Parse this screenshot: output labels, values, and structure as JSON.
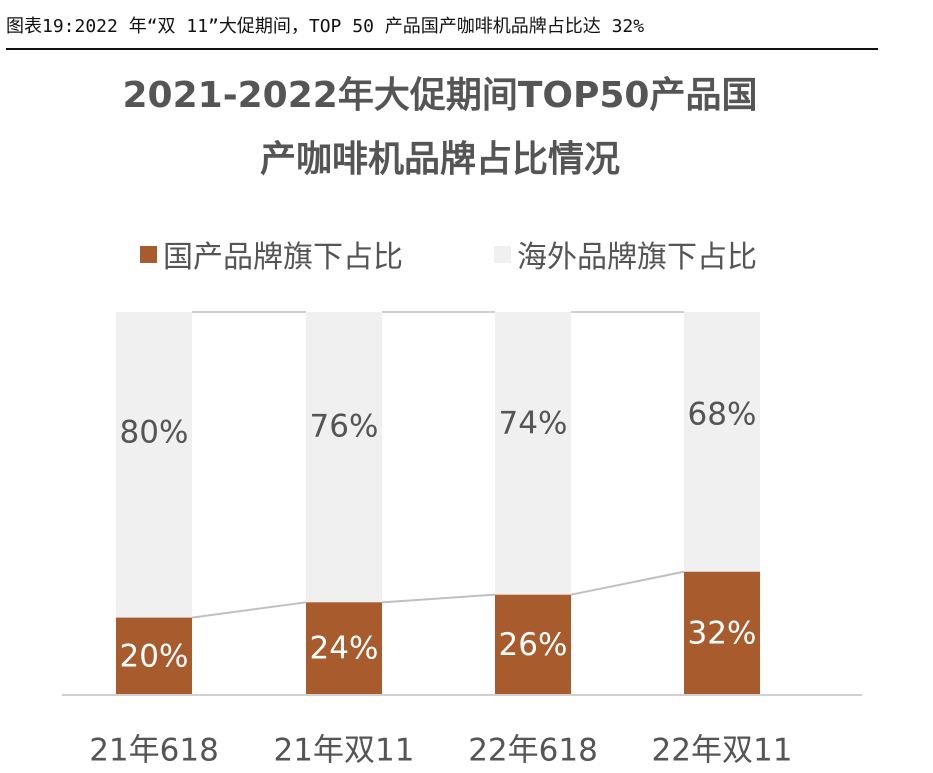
{
  "caption": "图表19:2022 年“双 11”大促期间，TOP 50 产品国产咖啡机品牌占比达 32%",
  "chart_data": {
    "type": "bar",
    "stacked": true,
    "title_line1": "2021-2022年大促期间TOP50产品国",
    "title_line2": "产咖啡机品牌占比情况",
    "categories": [
      "21年618",
      "21年双11",
      "22年618",
      "22年双11"
    ],
    "series": [
      {
        "name": "国产品牌旗下占比",
        "values": [
          20,
          24,
          26,
          32
        ],
        "color": "#a85c2e"
      },
      {
        "name": "海外品牌旗下占比",
        "values": [
          80,
          76,
          74,
          68
        ],
        "color": "#f0f0f0"
      }
    ],
    "data_labels": {
      "domestic": [
        "20%",
        "24%",
        "26%",
        "32%"
      ],
      "overseas": [
        "80%",
        "76%",
        "74%",
        "68%"
      ]
    },
    "ylim": [
      0,
      100
    ],
    "units": "%",
    "legend_position": "top",
    "gridlines": false,
    "connector_color": "#c0c0c0",
    "axis_color": "#d0d0d0"
  }
}
